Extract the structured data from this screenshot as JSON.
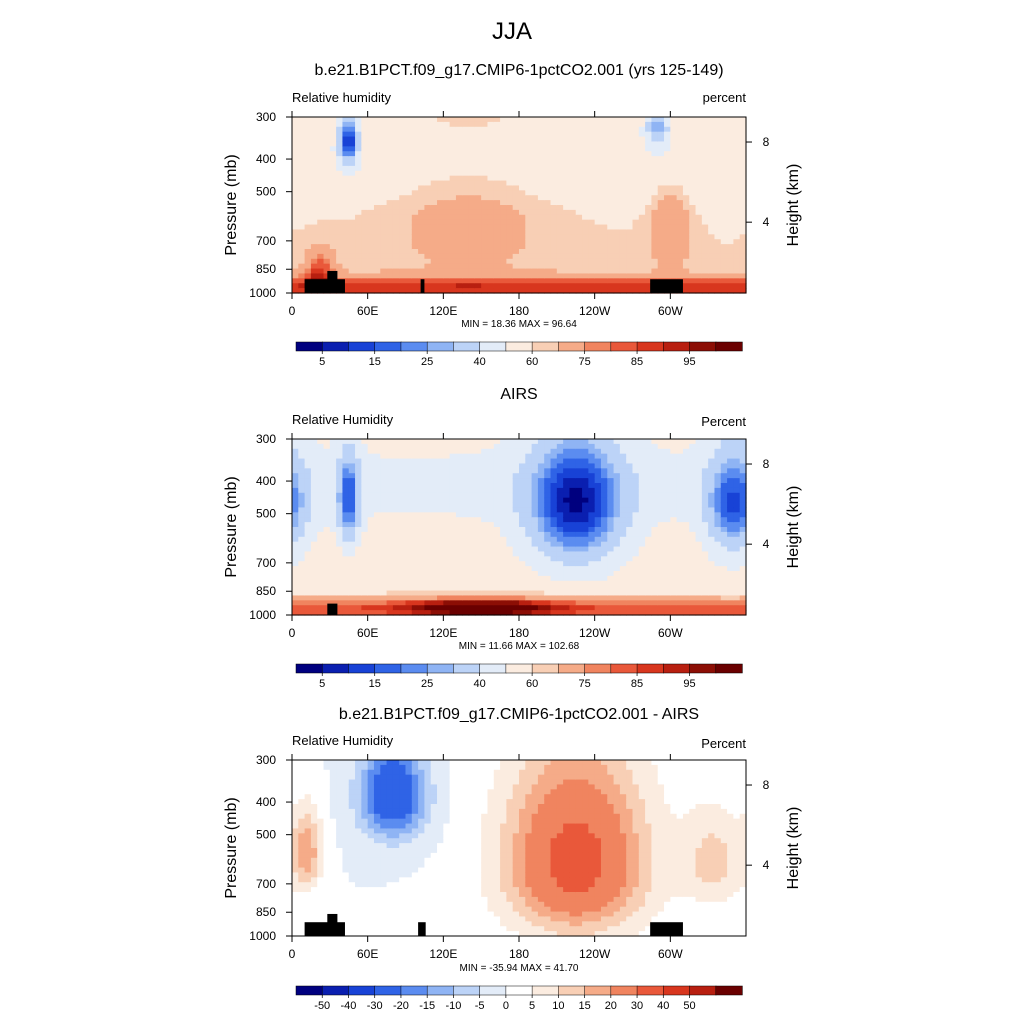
{
  "figure": {
    "title": "JJA"
  },
  "colors": {
    "rh_scale": [
      "#00007f",
      "#0a1fb0",
      "#1842d6",
      "#2f63e6",
      "#5b8cf0",
      "#8fb4f4",
      "#bcd3f7",
      "#e3ecf8",
      "#fbece0",
      "#f8cfb5",
      "#f5ab88",
      "#f0845f",
      "#e9583a",
      "#d8361e",
      "#b81f10",
      "#8c0e05",
      "#6a0000"
    ],
    "diff_scale": [
      "#00007f",
      "#0a1fb0",
      "#1842d6",
      "#2f63e6",
      "#5b8cf0",
      "#8fb4f4",
      "#bcd3f7",
      "#e3ecf8",
      "#ffffff",
      "#fbece0",
      "#f8cfb5",
      "#f5ab88",
      "#f0845f",
      "#e9583a",
      "#d8361e",
      "#b81f10",
      "#6a0000"
    ],
    "missing": "#000000"
  },
  "chart_data": [
    {
      "type": "heatmap",
      "title": "b.e21.B1PCT.f09_g17.CMIP6-1pctCO2.001 (yrs 125-149)",
      "left_label": "Relative humidity",
      "right_label": "percent",
      "ylabel": "Pressure (mb)",
      "ylabel_right": "Height (km)",
      "x_ticks": [
        "0",
        "60E",
        "120E",
        "180",
        "120W",
        "60W"
      ],
      "y_ticks": [
        "300",
        "400",
        "500",
        "700",
        "850",
        "1000"
      ],
      "height_ticks": [
        "8",
        "4"
      ],
      "stats": "MIN =  18.36  MAX =  96.64",
      "colorbar_labels": [
        "5",
        "15",
        "25",
        "40",
        "60",
        "75",
        "85",
        "95"
      ],
      "ylim": [
        1000,
        300
      ],
      "xlim": [
        0,
        360
      ],
      "base": 60,
      "features": [
        {
          "lon": 22,
          "p": 860,
          "amp": 25,
          "wx": 12,
          "wp": 120
        },
        {
          "lon": 45,
          "p": 350,
          "amp": -45,
          "wx": 8,
          "wp": 60
        },
        {
          "lon": 290,
          "p": 320,
          "amp": -30,
          "wx": 10,
          "wp": 50
        },
        {
          "lon": 140,
          "p": 600,
          "amp": 10,
          "wx": 60,
          "wp": 300
        },
        {
          "lon": 300,
          "p": 650,
          "amp": 15,
          "wx": 15,
          "wp": 200
        }
      ],
      "missing": [
        {
          "lon": [
            10,
            42
          ],
          "p": [
            910,
            1000
          ]
        },
        {
          "lon": [
            28,
            36
          ],
          "p": [
            860,
            1000
          ]
        },
        {
          "lon": [
            102,
            105
          ],
          "p": [
            910,
            1000
          ]
        },
        {
          "lon": [
            284,
            310
          ],
          "p": [
            910,
            1000
          ]
        }
      ]
    },
    {
      "type": "heatmap",
      "title": "AIRS",
      "left_label": "Relative Humidity",
      "right_label": "Percent",
      "ylabel": "Pressure (mb)",
      "ylabel_right": "Height (km)",
      "x_ticks": [
        "0",
        "60E",
        "120E",
        "180",
        "120W",
        "60W"
      ],
      "y_ticks": [
        "300",
        "400",
        "500",
        "700",
        "850",
        "1000"
      ],
      "height_ticks": [
        "8",
        "4"
      ],
      "stats": "MIN =  11.66  MAX = 102.68",
      "colorbar_labels": [
        "5",
        "15",
        "25",
        "40",
        "60",
        "75",
        "85",
        "95"
      ],
      "ylim": [
        1000,
        300
      ],
      "xlim": [
        0,
        360
      ],
      "base": 55,
      "features": [
        {
          "lon": 45,
          "p": 460,
          "amp": -35,
          "wx": 9,
          "wp": 150
        },
        {
          "lon": 225,
          "p": 480,
          "amp": -45,
          "wx": 38,
          "wp": 220
        },
        {
          "lon": 350,
          "p": 480,
          "amp": -35,
          "wx": 22,
          "wp": 180
        },
        {
          "lon": 150,
          "p": 950,
          "amp": 30,
          "wx": 60,
          "wp": 70
        }
      ],
      "missing": [
        {
          "lon": [
            28,
            36
          ],
          "p": [
            925,
            1000
          ]
        }
      ]
    },
    {
      "type": "heatmap",
      "title": "b.e21.B1PCT.f09_g17.CMIP6-1pctCO2.001 - AIRS",
      "left_label": "Relative Humidity",
      "right_label": "Percent",
      "ylabel": "Pressure (mb)",
      "ylabel_right": "Height (km)",
      "x_ticks": [
        "0",
        "60E",
        "120E",
        "180",
        "120W",
        "60W"
      ],
      "y_ticks": [
        "300",
        "400",
        "500",
        "700",
        "850",
        "1000"
      ],
      "height_ticks": [
        "8",
        "4"
      ],
      "stats": "MIN = -35.94  MAX =  41.70",
      "colorbar_labels": [
        "-50",
        "-40",
        "-30",
        "-20",
        "-15",
        "-10",
        "-5",
        "0",
        "5",
        "10",
        "15",
        "20",
        "30",
        "40",
        "50"
      ],
      "ylim": [
        1000,
        300
      ],
      "xlim": [
        0,
        360
      ],
      "base": 0,
      "features": [
        {
          "lon": 225,
          "p": 600,
          "amp": 35,
          "wx": 55,
          "wp": 350
        },
        {
          "lon": 80,
          "p": 380,
          "amp": -30,
          "wx": 25,
          "wp": 120
        },
        {
          "lon": 12,
          "p": 560,
          "amp": 18,
          "wx": 12,
          "wp": 150
        },
        {
          "lon": 335,
          "p": 600,
          "amp": 12,
          "wx": 25,
          "wp": 200
        }
      ],
      "missing": [
        {
          "lon": [
            10,
            42
          ],
          "p": [
            910,
            1000
          ]
        },
        {
          "lon": [
            28,
            36
          ],
          "p": [
            860,
            1000
          ]
        },
        {
          "lon": [
            100,
            106
          ],
          "p": [
            910,
            1000
          ]
        },
        {
          "lon": [
            284,
            310
          ],
          "p": [
            910,
            1000
          ]
        }
      ]
    }
  ]
}
